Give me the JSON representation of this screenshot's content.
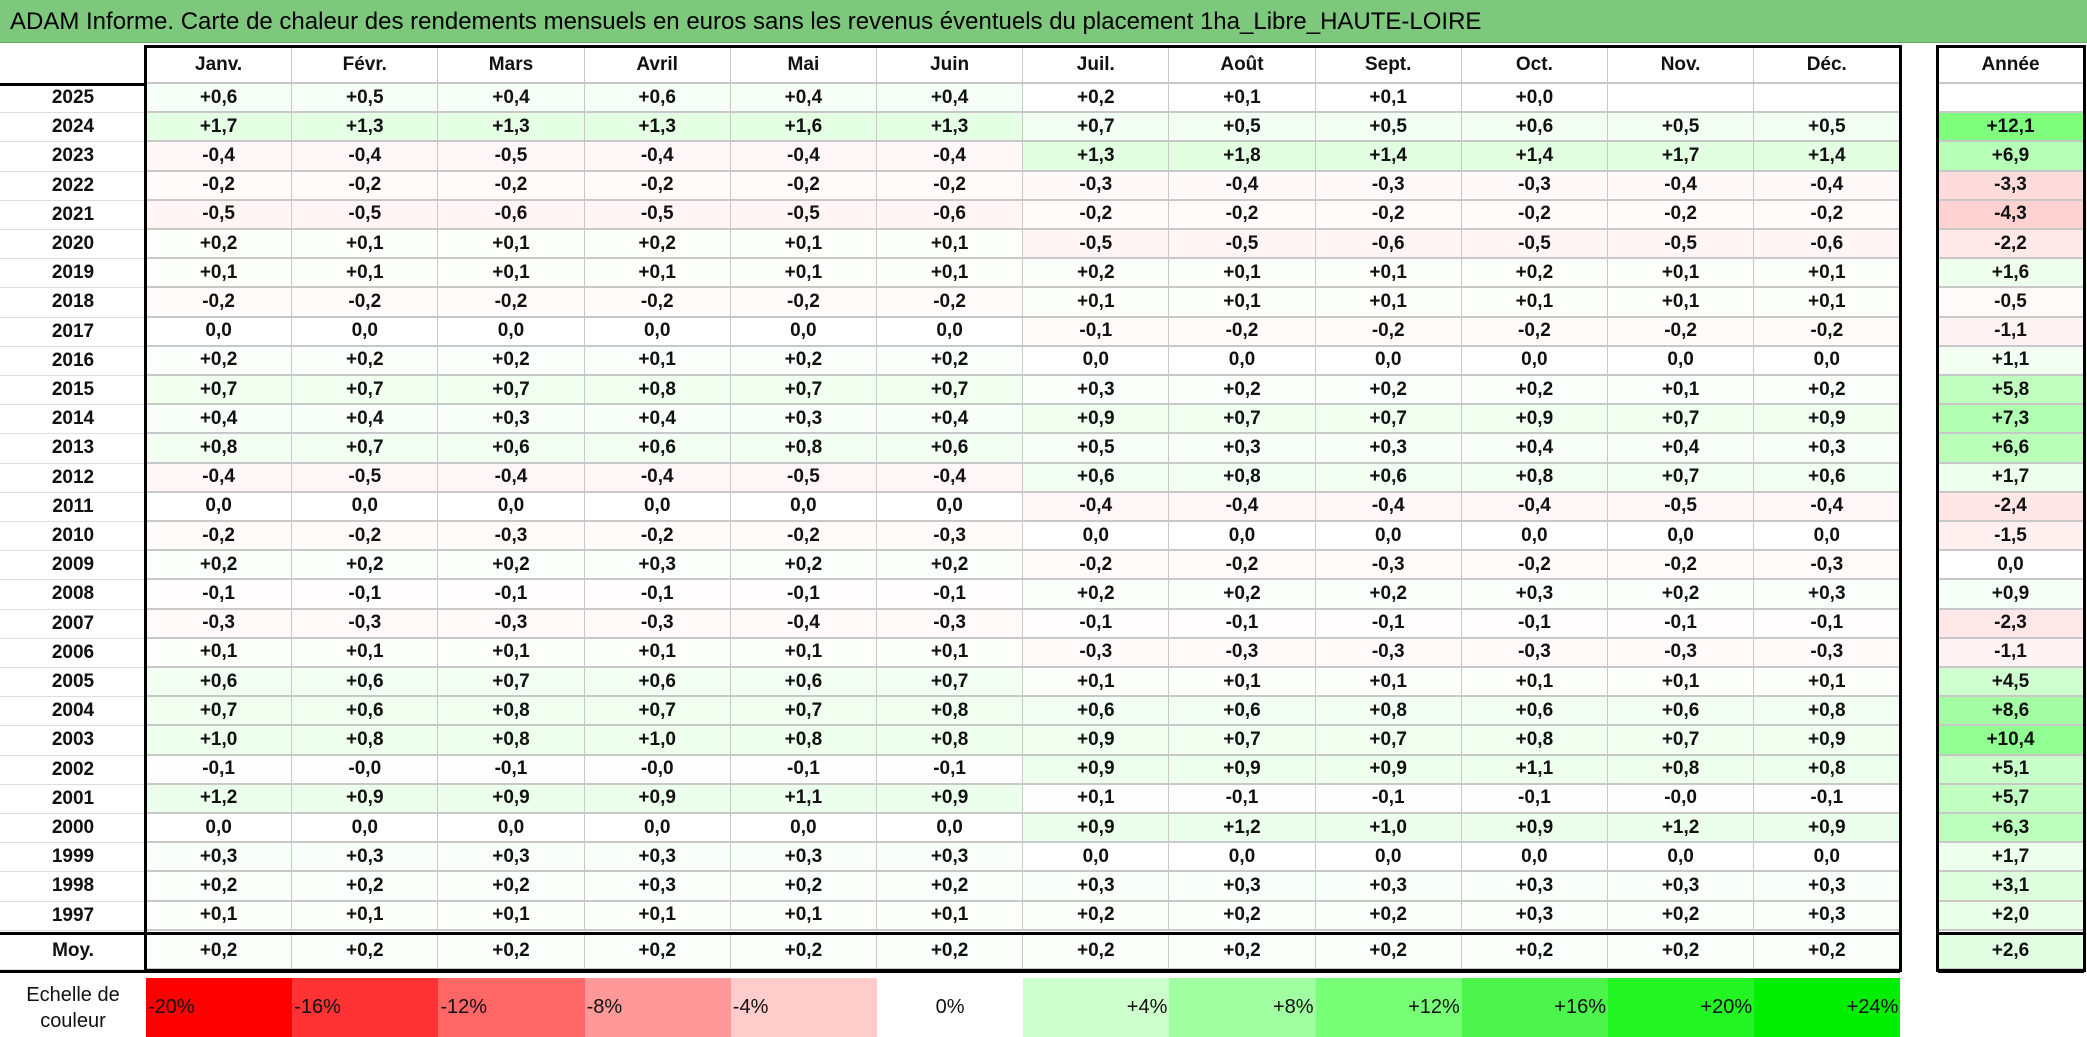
{
  "title": "ADAM Informe. Carte de chaleur des rendements mensuels en euros sans les revenus éventuels du placement 1ha_Libre_HAUTE-LOIRE",
  "chart_data": {
    "type": "heatmap",
    "title": "ADAM Informe. Carte de chaleur des rendements mensuels en euros sans les revenus éventuels du placement 1ha_Libre_HAUTE-LOIRE",
    "columns": [
      "Janv.",
      "Févr.",
      "Mars",
      "Avril",
      "Mai",
      "Juin",
      "Juil.",
      "Août",
      "Sept.",
      "Oct.",
      "Nov.",
      "Déc."
    ],
    "total_header": "Année",
    "rows": [
      {
        "year": "2025",
        "values": [
          "+0,6",
          "+0,5",
          "+0,4",
          "+0,6",
          "+0,4",
          "+0,4",
          "+0,2",
          "+0,1",
          "+0,1",
          "+0,0",
          "",
          ""
        ],
        "total": ""
      },
      {
        "year": "2024",
        "values": [
          "+1,7",
          "+1,3",
          "+1,3",
          "+1,3",
          "+1,6",
          "+1,3",
          "+0,7",
          "+0,5",
          "+0,5",
          "+0,6",
          "+0,5",
          "+0,5"
        ],
        "total": "+12,1"
      },
      {
        "year": "2023",
        "values": [
          "-0,4",
          "-0,4",
          "-0,5",
          "-0,4",
          "-0,4",
          "-0,4",
          "+1,3",
          "+1,8",
          "+1,4",
          "+1,4",
          "+1,7",
          "+1,4"
        ],
        "total": "+6,9"
      },
      {
        "year": "2022",
        "values": [
          "-0,2",
          "-0,2",
          "-0,2",
          "-0,2",
          "-0,2",
          "-0,2",
          "-0,3",
          "-0,4",
          "-0,3",
          "-0,3",
          "-0,4",
          "-0,4"
        ],
        "total": "-3,3"
      },
      {
        "year": "2021",
        "values": [
          "-0,5",
          "-0,5",
          "-0,6",
          "-0,5",
          "-0,5",
          "-0,6",
          "-0,2",
          "-0,2",
          "-0,2",
          "-0,2",
          "-0,2",
          "-0,2"
        ],
        "total": "-4,3"
      },
      {
        "year": "2020",
        "values": [
          "+0,2",
          "+0,1",
          "+0,1",
          "+0,2",
          "+0,1",
          "+0,1",
          "-0,5",
          "-0,5",
          "-0,6",
          "-0,5",
          "-0,5",
          "-0,6"
        ],
        "total": "-2,2"
      },
      {
        "year": "2019",
        "values": [
          "+0,1",
          "+0,1",
          "+0,1",
          "+0,1",
          "+0,1",
          "+0,1",
          "+0,2",
          "+0,1",
          "+0,1",
          "+0,2",
          "+0,1",
          "+0,1"
        ],
        "total": "+1,6"
      },
      {
        "year": "2018",
        "values": [
          "-0,2",
          "-0,2",
          "-0,2",
          "-0,2",
          "-0,2",
          "-0,2",
          "+0,1",
          "+0,1",
          "+0,1",
          "+0,1",
          "+0,1",
          "+0,1"
        ],
        "total": "-0,5"
      },
      {
        "year": "2017",
        "values": [
          "0,0",
          "0,0",
          "0,0",
          "0,0",
          "0,0",
          "0,0",
          "-0,1",
          "-0,2",
          "-0,2",
          "-0,2",
          "-0,2",
          "-0,2"
        ],
        "total": "-1,1"
      },
      {
        "year": "2016",
        "values": [
          "+0,2",
          "+0,2",
          "+0,2",
          "+0,1",
          "+0,2",
          "+0,2",
          "0,0",
          "0,0",
          "0,0",
          "0,0",
          "0,0",
          "0,0"
        ],
        "total": "+1,1"
      },
      {
        "year": "2015",
        "values": [
          "+0,7",
          "+0,7",
          "+0,7",
          "+0,8",
          "+0,7",
          "+0,7",
          "+0,3",
          "+0,2",
          "+0,2",
          "+0,2",
          "+0,1",
          "+0,2"
        ],
        "total": "+5,8"
      },
      {
        "year": "2014",
        "values": [
          "+0,4",
          "+0,4",
          "+0,3",
          "+0,4",
          "+0,3",
          "+0,4",
          "+0,9",
          "+0,7",
          "+0,7",
          "+0,9",
          "+0,7",
          "+0,9"
        ],
        "total": "+7,3"
      },
      {
        "year": "2013",
        "values": [
          "+0,8",
          "+0,7",
          "+0,6",
          "+0,6",
          "+0,8",
          "+0,6",
          "+0,5",
          "+0,3",
          "+0,3",
          "+0,4",
          "+0,4",
          "+0,3"
        ],
        "total": "+6,6"
      },
      {
        "year": "2012",
        "values": [
          "-0,4",
          "-0,5",
          "-0,4",
          "-0,4",
          "-0,5",
          "-0,4",
          "+0,6",
          "+0,8",
          "+0,6",
          "+0,8",
          "+0,7",
          "+0,6"
        ],
        "total": "+1,7"
      },
      {
        "year": "2011",
        "values": [
          "0,0",
          "0,0",
          "0,0",
          "0,0",
          "0,0",
          "0,0",
          "-0,4",
          "-0,4",
          "-0,4",
          "-0,4",
          "-0,5",
          "-0,4"
        ],
        "total": "-2,4"
      },
      {
        "year": "2010",
        "values": [
          "-0,2",
          "-0,2",
          "-0,3",
          "-0,2",
          "-0,2",
          "-0,3",
          "0,0",
          "0,0",
          "0,0",
          "0,0",
          "0,0",
          "0,0"
        ],
        "total": "-1,5"
      },
      {
        "year": "2009",
        "values": [
          "+0,2",
          "+0,2",
          "+0,2",
          "+0,3",
          "+0,2",
          "+0,2",
          "-0,2",
          "-0,2",
          "-0,3",
          "-0,2",
          "-0,2",
          "-0,3"
        ],
        "total": "0,0"
      },
      {
        "year": "2008",
        "values": [
          "-0,1",
          "-0,1",
          "-0,1",
          "-0,1",
          "-0,1",
          "-0,1",
          "+0,2",
          "+0,2",
          "+0,2",
          "+0,3",
          "+0,2",
          "+0,3"
        ],
        "total": "+0,9"
      },
      {
        "year": "2007",
        "values": [
          "-0,3",
          "-0,3",
          "-0,3",
          "-0,3",
          "-0,4",
          "-0,3",
          "-0,1",
          "-0,1",
          "-0,1",
          "-0,1",
          "-0,1",
          "-0,1"
        ],
        "total": "-2,3"
      },
      {
        "year": "2006",
        "values": [
          "+0,1",
          "+0,1",
          "+0,1",
          "+0,1",
          "+0,1",
          "+0,1",
          "-0,3",
          "-0,3",
          "-0,3",
          "-0,3",
          "-0,3",
          "-0,3"
        ],
        "total": "-1,1"
      },
      {
        "year": "2005",
        "values": [
          "+0,6",
          "+0,6",
          "+0,7",
          "+0,6",
          "+0,6",
          "+0,7",
          "+0,1",
          "+0,1",
          "+0,1",
          "+0,1",
          "+0,1",
          "+0,1"
        ],
        "total": "+4,5"
      },
      {
        "year": "2004",
        "values": [
          "+0,7",
          "+0,6",
          "+0,8",
          "+0,7",
          "+0,7",
          "+0,8",
          "+0,6",
          "+0,6",
          "+0,8",
          "+0,6",
          "+0,6",
          "+0,8"
        ],
        "total": "+8,6"
      },
      {
        "year": "2003",
        "values": [
          "+1,0",
          "+0,8",
          "+0,8",
          "+1,0",
          "+0,8",
          "+0,8",
          "+0,9",
          "+0,7",
          "+0,7",
          "+0,8",
          "+0,7",
          "+0,9"
        ],
        "total": "+10,4"
      },
      {
        "year": "2002",
        "values": [
          "-0,1",
          "-0,0",
          "-0,1",
          "-0,0",
          "-0,1",
          "-0,1",
          "+0,9",
          "+0,9",
          "+0,9",
          "+1,1",
          "+0,8",
          "+0,8"
        ],
        "total": "+5,1"
      },
      {
        "year": "2001",
        "values": [
          "+1,2",
          "+0,9",
          "+0,9",
          "+0,9",
          "+1,1",
          "+0,9",
          "+0,1",
          "-0,1",
          "-0,1",
          "-0,1",
          "-0,0",
          "-0,1"
        ],
        "total": "+5,7"
      },
      {
        "year": "2000",
        "values": [
          "0,0",
          "0,0",
          "0,0",
          "0,0",
          "0,0",
          "0,0",
          "+0,9",
          "+1,2",
          "+1,0",
          "+0,9",
          "+1,2",
          "+0,9"
        ],
        "total": "+6,3"
      },
      {
        "year": "1999",
        "values": [
          "+0,3",
          "+0,3",
          "+0,3",
          "+0,3",
          "+0,3",
          "+0,3",
          "0,0",
          "0,0",
          "0,0",
          "0,0",
          "0,0",
          "0,0"
        ],
        "total": "+1,7"
      },
      {
        "year": "1998",
        "values": [
          "+0,2",
          "+0,2",
          "+0,2",
          "+0,3",
          "+0,2",
          "+0,2",
          "+0,3",
          "+0,3",
          "+0,3",
          "+0,3",
          "+0,3",
          "+0,3"
        ],
        "total": "+3,1"
      },
      {
        "year": "1997",
        "values": [
          "+0,1",
          "+0,1",
          "+0,1",
          "+0,1",
          "+0,1",
          "+0,1",
          "+0,2",
          "+0,2",
          "+0,2",
          "+0,3",
          "+0,2",
          "+0,3"
        ],
        "total": "+2,0"
      }
    ],
    "average": {
      "label": "Moy.",
      "values": [
        "+0,2",
        "+0,2",
        "+0,2",
        "+0,2",
        "+0,2",
        "+0,2",
        "+0,2",
        "+0,2",
        "+0,2",
        "+0,2",
        "+0,2",
        "+0,2"
      ],
      "total": "+2,6"
    },
    "color_scale": {
      "label": "Echelle de couleur",
      "steps": [
        {
          "label": "-20%",
          "color": "#ff0000"
        },
        {
          "label": "-16%",
          "color": "#ff3333"
        },
        {
          "label": "-12%",
          "color": "#ff6666"
        },
        {
          "label": "-8%",
          "color": "#ff9999"
        },
        {
          "label": "-4%",
          "color": "#ffcccc"
        },
        {
          "label": "0%",
          "color": "#ffffff"
        },
        {
          "label": "+4%",
          "color": "#ccffcc"
        },
        {
          "label": "+8%",
          "color": "#a0ffa0"
        },
        {
          "label": "+12%",
          "color": "#77ff77"
        },
        {
          "label": "+16%",
          "color": "#4cf44c"
        },
        {
          "label": "+20%",
          "color": "#22f522"
        },
        {
          "label": "+24%",
          "color": "#00ee00"
        }
      ]
    }
  }
}
